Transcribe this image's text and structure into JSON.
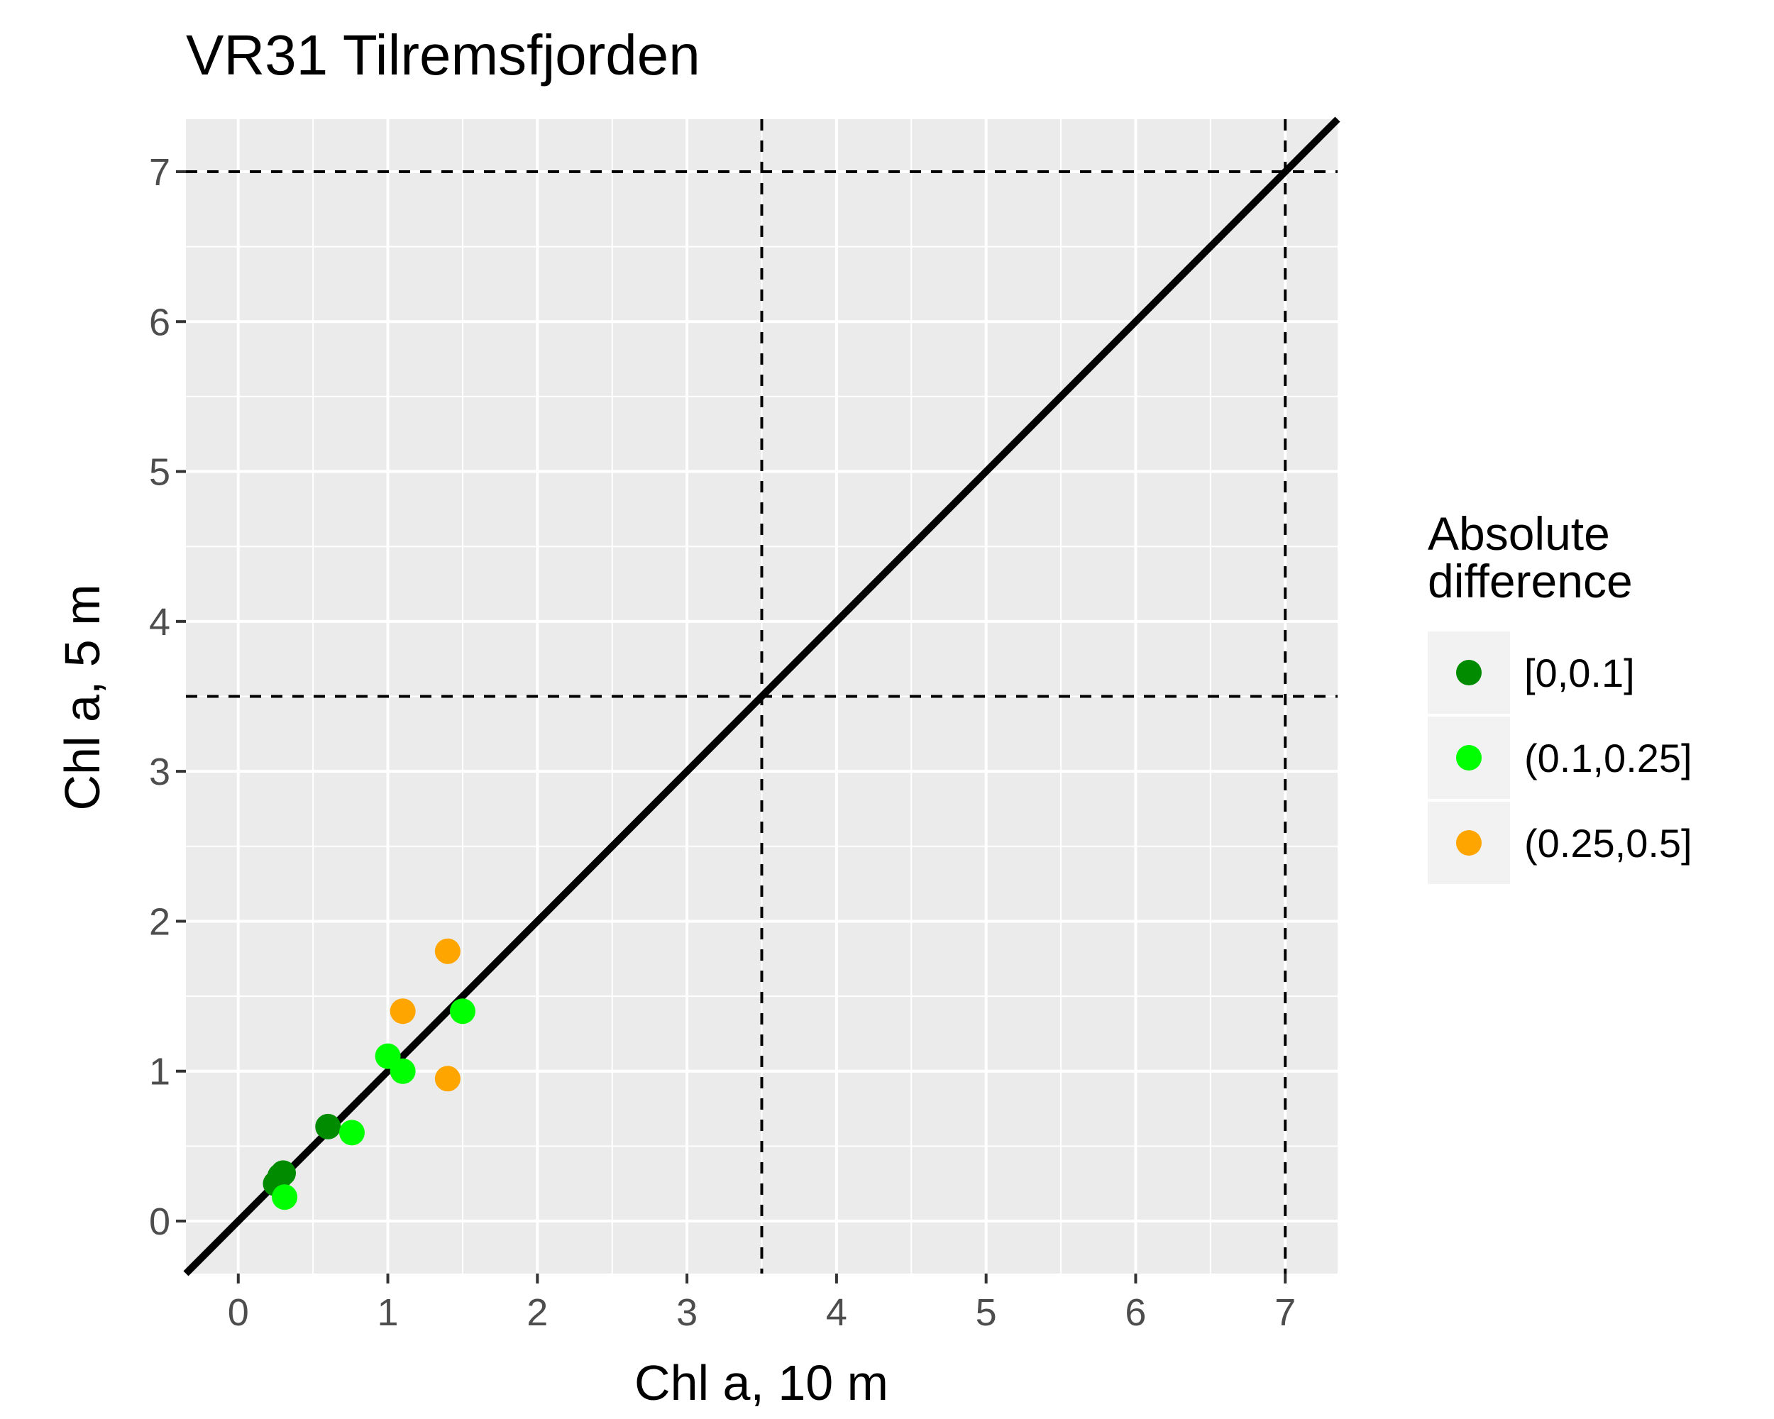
{
  "chart_data": {
    "type": "scatter",
    "title": "VR31 Tilremsfjorden",
    "xlabel": "Chl a, 10 m",
    "ylabel": "Chl a, 5 m",
    "xlim": [
      -0.35,
      7.35
    ],
    "ylim": [
      -0.35,
      7.35
    ],
    "xticks": [
      "0",
      "1",
      "2",
      "3",
      "4",
      "5",
      "6",
      "7"
    ],
    "yticks": [
      "0",
      "1",
      "2",
      "3",
      "4",
      "5",
      "6",
      "7"
    ],
    "grid": true,
    "reference_line": {
      "type": "identity",
      "slope": 1,
      "intercept": 0
    },
    "threshold_lines": {
      "x": [
        3.5,
        7
      ],
      "y": [
        3.5,
        7
      ]
    },
    "legend": {
      "title_lines": [
        "Absolute",
        "difference"
      ],
      "position": "right",
      "items": [
        {
          "label": "[0,0.1]",
          "color": "#008b00"
        },
        {
          "label": "(0.1,0.25]",
          "color": "#00ff00"
        },
        {
          "label": "(0.25,0.5]",
          "color": "#ffa500"
        }
      ]
    },
    "series": [
      {
        "name": "[0,0.1]",
        "color": "#008b00",
        "points": [
          [
            0.25,
            0.25
          ],
          [
            0.28,
            0.3
          ],
          [
            0.3,
            0.32
          ],
          [
            0.6,
            0.63
          ]
        ]
      },
      {
        "name": "(0.1,0.25]",
        "color": "#00ff00",
        "points": [
          [
            0.31,
            0.16
          ],
          [
            0.76,
            0.59
          ],
          [
            1.0,
            1.1
          ],
          [
            1.1,
            1.0
          ],
          [
            1.5,
            1.4
          ]
        ]
      },
      {
        "name": "(0.25,0.5]",
        "color": "#ffa500",
        "points": [
          [
            1.1,
            1.4
          ],
          [
            1.4,
            1.8
          ],
          [
            1.4,
            0.95
          ]
        ]
      }
    ]
  }
}
